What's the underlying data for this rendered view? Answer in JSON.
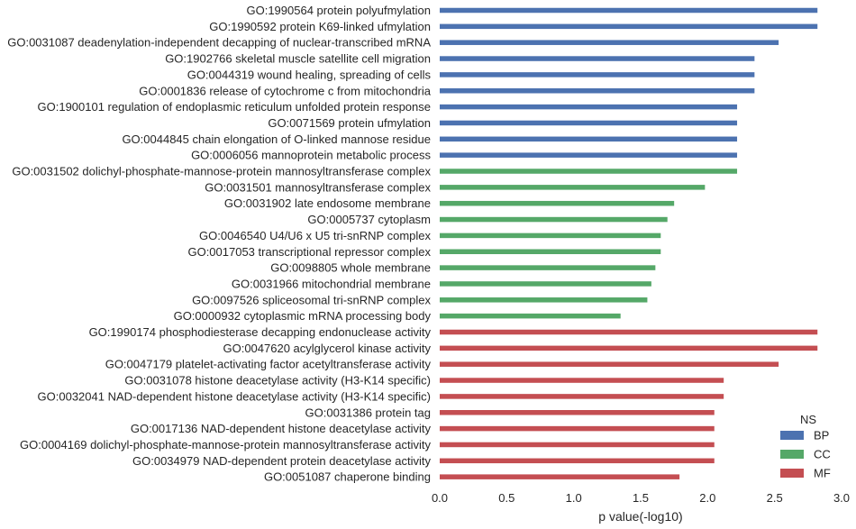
{
  "chart_data": {
    "type": "bar",
    "orientation": "horizontal",
    "xlabel": "p value(-log10)",
    "xlim": [
      0.0,
      3.0
    ],
    "xticks": [
      "0.0",
      "0.5",
      "1.0",
      "1.5",
      "2.0",
      "2.5",
      "3.0"
    ],
    "grid": false,
    "legend": {
      "title": "NS",
      "placement": "lower-right",
      "entries": [
        {
          "name": "BP",
          "color": "#4c72b0"
        },
        {
          "name": "CC",
          "color": "#55a868"
        },
        {
          "name": "MF",
          "color": "#c44e52"
        }
      ]
    },
    "categories": [
      "GO:1990564 protein polyufmylation",
      "GO:1990592 protein K69-linked ufmylation",
      "GO:0031087 deadenylation-independent decapping of nuclear-transcribed mRNA",
      "GO:1902766 skeletal muscle satellite cell migration",
      "GO:0044319 wound healing, spreading of cells",
      "GO:0001836 release of cytochrome c from mitochondria",
      "GO:1900101 regulation of endoplasmic reticulum unfolded protein response",
      "GO:0071569 protein ufmylation",
      "GO:0044845 chain elongation of O-linked mannose residue",
      "GO:0006056 mannoprotein metabolic process",
      "GO:0031502 dolichyl-phosphate-mannose-protein mannosyltransferase complex",
      "GO:0031501 mannosyltransferase complex",
      "GO:0031902 late endosome membrane",
      "GO:0005737 cytoplasm",
      "GO:0046540 U4/U6 x U5 tri-snRNP complex",
      "GO:0017053 transcriptional repressor complex",
      "GO:0098805 whole membrane",
      "GO:0031966 mitochondrial membrane",
      "GO:0097526 spliceosomal tri-snRNP complex",
      "GO:0000932 cytoplasmic mRNA processing body",
      "GO:1990174 phosphodiesterase decapping endonuclease activity",
      "GO:0047620 acylglycerol kinase activity",
      "GO:0047179 platelet-activating factor acetyltransferase activity",
      "GO:0031078 histone deacetylase activity (H3-K14 specific)",
      "GO:0032041 NAD-dependent histone deacetylase activity (H3-K14 specific)",
      "GO:0031386 protein tag",
      "GO:0017136 NAD-dependent histone deacetylase activity",
      "GO:0004169 dolichyl-phosphate-mannose-protein mannosyltransferase activity",
      "GO:0034979 NAD-dependent protein deacetylase activity",
      "GO:0051087 chaperone binding"
    ],
    "groups": [
      "BP",
      "BP",
      "BP",
      "BP",
      "BP",
      "BP",
      "BP",
      "BP",
      "BP",
      "BP",
      "CC",
      "CC",
      "CC",
      "CC",
      "CC",
      "CC",
      "CC",
      "CC",
      "CC",
      "CC",
      "MF",
      "MF",
      "MF",
      "MF",
      "MF",
      "MF",
      "MF",
      "MF",
      "MF",
      "MF"
    ],
    "values": [
      2.82,
      2.82,
      2.53,
      2.35,
      2.35,
      2.35,
      2.22,
      2.22,
      2.22,
      2.22,
      2.22,
      1.98,
      1.75,
      1.7,
      1.65,
      1.65,
      1.61,
      1.58,
      1.55,
      1.35,
      2.82,
      2.82,
      2.53,
      2.12,
      2.12,
      2.05,
      2.05,
      2.05,
      2.05,
      1.79
    ]
  }
}
